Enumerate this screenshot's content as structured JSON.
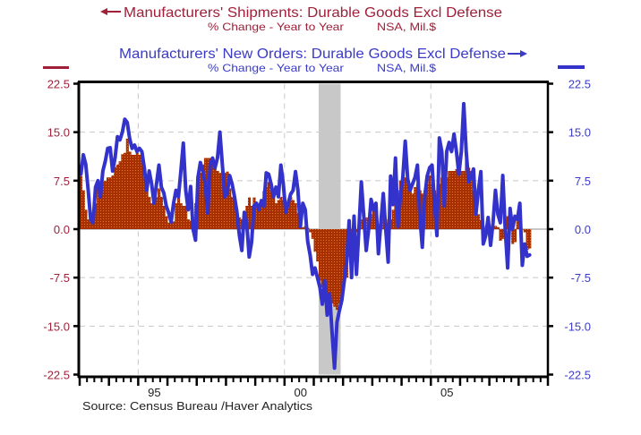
{
  "chart_data": {
    "type": "bar",
    "title": "",
    "xlabel": "",
    "ylabel": "",
    "x": {
      "start": "1993-01",
      "frequency": "monthly",
      "range": [
        1993,
        2009
      ],
      "tick_labels": [
        "95",
        "00",
        "05"
      ],
      "tick_label_years": [
        1995,
        2000,
        2005
      ],
      "minor_ticks": "quarterly",
      "major_ticks": "yearly"
    },
    "y_left": {
      "range": [
        -22.5,
        22.5
      ],
      "ticks": [
        22.5,
        15,
        7.5,
        0,
        -7.5,
        -15,
        -22.5
      ],
      "tick_labels": [
        "22.5",
        "15.0",
        "7.5",
        "0.0",
        "-7.5",
        "-15.0",
        "-22.5"
      ]
    },
    "y_right": {
      "range": [
        -22.5,
        22.5
      ],
      "ticks": [
        22.5,
        15,
        7.5,
        0,
        -7.5,
        -15,
        -22.5
      ],
      "tick_labels": [
        "22.5",
        "15.0",
        "7.5",
        "0.0",
        "-7.5",
        "-15.0",
        "-22.5"
      ]
    },
    "grid": {
      "on": true,
      "style": "dashed",
      "horizontal": [
        15,
        7.5,
        -7.5,
        -15
      ],
      "vertical_years": [
        1995,
        2000,
        2005
      ],
      "zero_line": true
    },
    "shading": [
      {
        "label": "recession",
        "start": "2001-03",
        "end": "2001-11",
        "color": "#c8c8c8"
      }
    ],
    "legend_position": "top",
    "series": [
      {
        "name": "Manufacturers' Shipments: Durable Goods Excl Defense",
        "subtitle": "% Change - Year to Year",
        "units": "NSA, Mil.$",
        "type": "bar",
        "axis": "left",
        "arrow": "left",
        "color": "#a83000",
        "dot_color": "#e0782a",
        "label_color": "#a0203a",
        "values": [
          8.2,
          6,
          3,
          1.5,
          1.3,
          1.5,
          4,
          6.7,
          7,
          7.3,
          7.5,
          8,
          8,
          8.3,
          9.6,
          10,
          10.5,
          11.6,
          11.8,
          14,
          12,
          11.5,
          11.5,
          11.8,
          11.5,
          11,
          8,
          6,
          5,
          4,
          4,
          5,
          6.3,
          5,
          3.6,
          2,
          1,
          1,
          1.2,
          4,
          5.4,
          4,
          3.6,
          3.6,
          1.5,
          1.3,
          1.2,
          4,
          6.5,
          8.7,
          10,
          11,
          11,
          11,
          10.5,
          10,
          9,
          8.7,
          8,
          8.7,
          8.9,
          6.3,
          5,
          4.4,
          3,
          1.8,
          1.5,
          1.8,
          3.6,
          4.9,
          3.6,
          4.9,
          3.8,
          3.6,
          4,
          5.9,
          6.5,
          7.3,
          6,
          5,
          4,
          4.5,
          5,
          4.5,
          4,
          4.5,
          5,
          4.5,
          4,
          2.5,
          0.3,
          0.3,
          0.5,
          0.2,
          -0.5,
          -1.5,
          -3.5,
          -5,
          -8,
          -9,
          -10,
          -11,
          -12,
          -11.5,
          -12,
          -12.5,
          -11.5,
          -10,
          -8,
          -7.5,
          -3,
          -2.5,
          -2,
          -0.5,
          0.3,
          1.5,
          2.5,
          1.8,
          1.5,
          2.3,
          2.8,
          2.2,
          -3.5,
          1.5,
          2,
          1.5,
          1,
          1.5,
          3,
          5,
          6,
          7.5,
          8,
          8,
          7,
          6,
          5.5,
          6.5,
          7,
          6,
          5.5,
          6,
          7,
          8.3,
          7,
          6,
          5.5,
          7,
          8,
          7.5,
          8,
          9,
          9,
          9,
          9.3,
          8.5,
          9,
          9,
          11,
          9.5,
          9,
          6,
          3.3,
          2.3,
          1.4,
          0.5,
          0,
          -0.5,
          -2.3,
          0.5,
          0.5,
          0.3,
          -1.8,
          -1.5,
          1.5,
          2,
          1.5,
          -2.3,
          -2,
          1.8,
          0.3,
          0,
          -0.5,
          -3.2,
          -3
        ]
      },
      {
        "name": "Manufacturers' New Orders: Durable Goods Excl Defense",
        "subtitle": "% Change - Year to Year",
        "units": "NSA, Mil.$",
        "type": "line",
        "axis": "right",
        "arrow": "right",
        "color": "#3333cc",
        "label_color": "#3b3bc8",
        "values": [
          8.5,
          11.5,
          10,
          6,
          1.5,
          1.0,
          6.5,
          7.5,
          5,
          9,
          10.5,
          12.5,
          12.6,
          9,
          11,
          14.3,
          13.8,
          15,
          17,
          16.5,
          14,
          12.5,
          13,
          12,
          12.5,
          12,
          9.5,
          6,
          9,
          7,
          4,
          7,
          9.9,
          6.5,
          5.6,
          3.6,
          2.5,
          1.1,
          4,
          6,
          5,
          9,
          13.3,
          6,
          3,
          6.6,
          0,
          -1.7,
          8,
          10.3,
          9,
          7,
          2.5,
          10,
          11,
          9.5,
          11,
          15,
          10,
          5,
          5.5,
          8.3,
          7,
          5,
          2.6,
          -1,
          -3.3,
          2.6,
          1,
          -4.3,
          -2,
          3.6,
          4,
          3,
          4.4,
          3.5,
          8.7,
          8.5,
          7,
          5,
          6.5,
          5,
          9.9,
          7,
          2.6,
          4,
          5.4,
          6,
          8.9,
          6,
          0.4,
          4,
          3,
          -1.9,
          -4,
          -7,
          -6,
          -7.5,
          -9,
          -11.6,
          -8,
          -13.3,
          -10,
          -16,
          -21.5,
          -14.4,
          -12.6,
          -11,
          -8,
          -5,
          1.3,
          -7.5,
          2,
          -7,
          0,
          7.3,
          2,
          -3.3,
          0,
          4.6,
          3,
          4,
          -3.8,
          1,
          5.5,
          0,
          -5.1,
          8.2,
          3.8,
          11,
          0.4,
          5,
          8,
          13.6,
          7.8,
          6,
          7,
          8,
          9.9,
          2,
          -2.8,
          5,
          8.2,
          9.5,
          9.9,
          4,
          -1,
          14.1,
          12,
          3.6,
          12,
          13.4,
          12,
          14.7,
          12,
          8.5,
          12,
          19.4,
          12,
          7.3,
          8,
          9.3,
          2.3,
          6,
          8.9,
          -2.3,
          -1,
          1.8,
          -2.5,
          1,
          6,
          2.3,
          1,
          8.3,
          0,
          -6,
          3.2,
          0,
          2,
          1.5,
          4,
          -5.6,
          -2.3,
          -4.2,
          -4
        ]
      }
    ],
    "source": "Source:  Census Bureau /Haver Analytics"
  },
  "icons": {
    "shipments_arrow": "arrow-left",
    "orders_arrow": "arrow-right"
  }
}
